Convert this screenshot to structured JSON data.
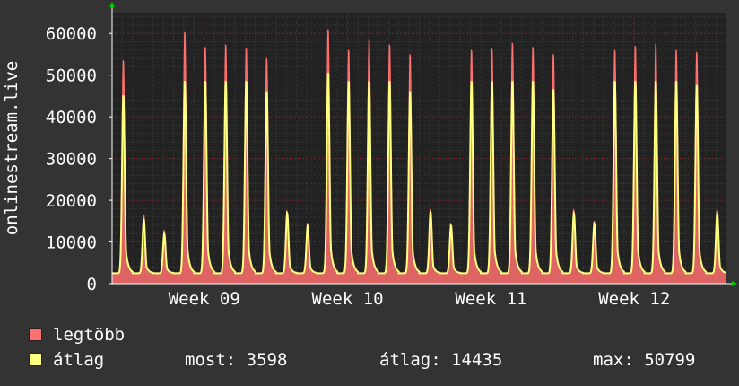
{
  "chart_data": {
    "type": "area",
    "ylabel": "onlinestream.live",
    "ylim": [
      0,
      65000
    ],
    "y_ticks": [
      0,
      10000,
      20000,
      30000,
      40000,
      50000,
      60000
    ],
    "x_tick_labels": [
      "Week 09",
      "Week 10",
      "Week 11",
      "Week 12"
    ],
    "grid": true,
    "series": [
      {
        "name": "legtöbb",
        "color": "#ff7070",
        "daily_peaks": [
          54000,
          16500,
          12800,
          60800,
          57200,
          57800,
          57000,
          54500,
          17500,
          14500,
          61500,
          56500,
          59000,
          57800,
          55500,
          18000,
          14500,
          56500,
          56800,
          58200,
          57200,
          55500,
          17800,
          15000,
          56500,
          57500,
          58000,
          56500,
          56000,
          17800
        ]
      },
      {
        "name": "átlag",
        "color": "#ffff80",
        "daily_peaks": [
          45500,
          15500,
          12000,
          49000,
          49000,
          49000,
          49000,
          46500,
          17000,
          14000,
          51000,
          49000,
          49000,
          49000,
          46500,
          17300,
          14000,
          49000,
          49000,
          49000,
          49000,
          47000,
          17000,
          14500,
          49000,
          49000,
          49000,
          49000,
          48000,
          17000
        ]
      }
    ],
    "legend": {
      "placement": "bottom-left",
      "entries": [
        {
          "label": "legtöbb",
          "color": "#ff7070"
        },
        {
          "label": "átlag",
          "color": "#ffff80"
        }
      ]
    },
    "stats": {
      "current_label": "most:",
      "current_value": "3598",
      "average_label": "átlag:",
      "average_value": "14435",
      "max_label": "max:",
      "max_value": "50799"
    }
  },
  "colors": {
    "background": "#333333",
    "plot_background": "#222222",
    "grid_minor": "#3c3c3c",
    "grid_major": "#8a2a2a",
    "axis": "#ffffff",
    "arrow": "#00cc00"
  }
}
